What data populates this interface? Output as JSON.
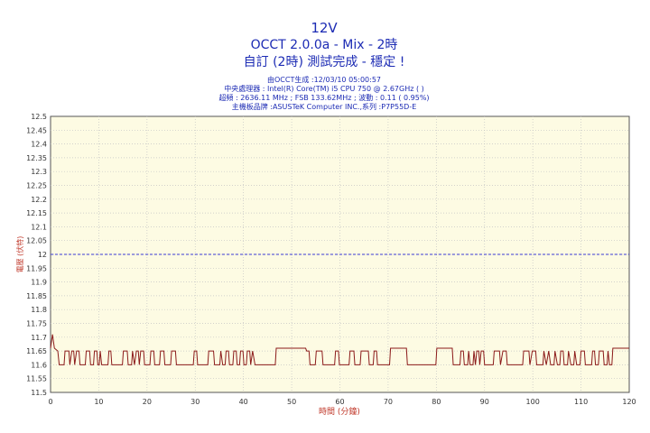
{
  "chart_data": {
    "type": "line",
    "title": "12V",
    "subtitle": "OCCT 2.0.0a - Mix - 2時",
    "status": "自訂 (2時) 測試完成 - 穩定 !",
    "info_lines": [
      "由OCCT生成 :12/03/10 05:00:57",
      "中央處理器 : Intel(R) Core(TM) i5 CPU 750 @ 2.67GHz (  )",
      "超頻 : 2636.11 MHz ; FSB 133.62MHz ; 波動 : 0.11 ( 0.95%)",
      "主機板品牌 :ASUSTeK Computer INC.,系列 :P7P55D-E"
    ],
    "xlabel": "時間 (分鐘)",
    "ylabel": "電壓 (伏特)",
    "xlim": [
      0,
      120
    ],
    "ylim": [
      11.5,
      12.5
    ],
    "x_ticks": [
      0,
      10,
      20,
      30,
      40,
      50,
      60,
      70,
      80,
      90,
      100,
      110,
      120
    ],
    "y_ticks": [
      "11.5",
      "11.55",
      "11.6",
      "11.65",
      "11.7",
      "11.75",
      "11.8",
      "11.85",
      "11.9",
      "11.95",
      "12",
      "12.05",
      "12.1",
      "12.15",
      "12.2",
      "12.25",
      "12.3",
      "12.35",
      "12.4",
      "12.45",
      "12.5"
    ],
    "grid": true,
    "reference_line": {
      "value": 12.0,
      "color": "#3b3bd6"
    },
    "series": [
      {
        "color": "#8b1a1a",
        "points": [
          [
            0,
            11.66
          ],
          [
            0.4,
            11.71
          ],
          [
            0.8,
            11.66
          ],
          [
            1.5,
            11.65
          ],
          [
            1.8,
            11.6
          ],
          [
            2.8,
            11.6
          ],
          [
            3.0,
            11.65
          ],
          [
            3.8,
            11.65
          ],
          [
            4.0,
            11.6
          ],
          [
            4.4,
            11.65
          ],
          [
            4.8,
            11.65
          ],
          [
            5.0,
            11.6
          ],
          [
            5.4,
            11.65
          ],
          [
            5.9,
            11.65
          ],
          [
            6.1,
            11.6
          ],
          [
            7.2,
            11.6
          ],
          [
            7.4,
            11.65
          ],
          [
            8.1,
            11.65
          ],
          [
            8.3,
            11.6
          ],
          [
            8.9,
            11.6
          ],
          [
            9.1,
            11.65
          ],
          [
            9.6,
            11.65
          ],
          [
            9.8,
            11.6
          ],
          [
            10.1,
            11.6
          ],
          [
            10.3,
            11.65
          ],
          [
            10.6,
            11.6
          ],
          [
            11.9,
            11.6
          ],
          [
            12.1,
            11.65
          ],
          [
            12.5,
            11.65
          ],
          [
            12.7,
            11.6
          ],
          [
            14.9,
            11.6
          ],
          [
            15.1,
            11.65
          ],
          [
            15.9,
            11.65
          ],
          [
            16.1,
            11.6
          ],
          [
            16.8,
            11.6
          ],
          [
            17.0,
            11.65
          ],
          [
            17.4,
            11.6
          ],
          [
            17.8,
            11.65
          ],
          [
            18.2,
            11.65
          ],
          [
            18.4,
            11.6
          ],
          [
            18.7,
            11.65
          ],
          [
            19.3,
            11.65
          ],
          [
            19.5,
            11.6
          ],
          [
            20.6,
            11.6
          ],
          [
            20.8,
            11.65
          ],
          [
            21.4,
            11.65
          ],
          [
            21.6,
            11.6
          ],
          [
            22.6,
            11.6
          ],
          [
            22.8,
            11.65
          ],
          [
            23.5,
            11.65
          ],
          [
            23.7,
            11.6
          ],
          [
            24.9,
            11.6
          ],
          [
            25.1,
            11.65
          ],
          [
            25.9,
            11.65
          ],
          [
            26.1,
            11.6
          ],
          [
            29.6,
            11.6
          ],
          [
            29.8,
            11.65
          ],
          [
            30.3,
            11.65
          ],
          [
            30.5,
            11.6
          ],
          [
            32.6,
            11.6
          ],
          [
            32.8,
            11.65
          ],
          [
            33.8,
            11.65
          ],
          [
            34.0,
            11.6
          ],
          [
            35.1,
            11.6
          ],
          [
            35.3,
            11.65
          ],
          [
            35.7,
            11.6
          ],
          [
            36.2,
            11.6
          ],
          [
            36.4,
            11.65
          ],
          [
            36.9,
            11.65
          ],
          [
            37.1,
            11.6
          ],
          [
            37.8,
            11.6
          ],
          [
            38.0,
            11.65
          ],
          [
            38.5,
            11.65
          ],
          [
            38.7,
            11.6
          ],
          [
            39.2,
            11.6
          ],
          [
            39.4,
            11.65
          ],
          [
            39.9,
            11.65
          ],
          [
            40.1,
            11.6
          ],
          [
            40.6,
            11.6
          ],
          [
            40.8,
            11.65
          ],
          [
            41.3,
            11.65
          ],
          [
            41.5,
            11.6
          ],
          [
            41.9,
            11.65
          ],
          [
            42.4,
            11.6
          ],
          [
            46.6,
            11.6
          ],
          [
            46.8,
            11.66
          ],
          [
            52.9,
            11.66
          ],
          [
            53.1,
            11.65
          ],
          [
            53.6,
            11.65
          ],
          [
            53.8,
            11.6
          ],
          [
            54.9,
            11.6
          ],
          [
            55.1,
            11.65
          ],
          [
            56.3,
            11.65
          ],
          [
            56.5,
            11.6
          ],
          [
            58.9,
            11.6
          ],
          [
            59.1,
            11.65
          ],
          [
            59.7,
            11.65
          ],
          [
            59.9,
            11.6
          ],
          [
            61.9,
            11.6
          ],
          [
            62.1,
            11.65
          ],
          [
            62.9,
            11.65
          ],
          [
            63.1,
            11.6
          ],
          [
            64.2,
            11.6
          ],
          [
            64.4,
            11.65
          ],
          [
            65.9,
            11.65
          ],
          [
            66.1,
            11.6
          ],
          [
            66.9,
            11.6
          ],
          [
            67.1,
            11.65
          ],
          [
            67.6,
            11.65
          ],
          [
            67.8,
            11.6
          ],
          [
            70.3,
            11.6
          ],
          [
            70.5,
            11.66
          ],
          [
            73.8,
            11.66
          ],
          [
            74.0,
            11.6
          ],
          [
            79.9,
            11.6
          ],
          [
            80.1,
            11.66
          ],
          [
            83.3,
            11.66
          ],
          [
            83.5,
            11.6
          ],
          [
            84.9,
            11.6
          ],
          [
            85.1,
            11.65
          ],
          [
            85.6,
            11.65
          ],
          [
            85.8,
            11.6
          ],
          [
            86.5,
            11.6
          ],
          [
            86.7,
            11.65
          ],
          [
            87.0,
            11.6
          ],
          [
            87.6,
            11.6
          ],
          [
            87.8,
            11.65
          ],
          [
            88.1,
            11.6
          ],
          [
            88.4,
            11.65
          ],
          [
            88.8,
            11.65
          ],
          [
            89.0,
            11.6
          ],
          [
            89.3,
            11.65
          ],
          [
            89.8,
            11.65
          ],
          [
            90.0,
            11.6
          ],
          [
            91.8,
            11.6
          ],
          [
            92.0,
            11.65
          ],
          [
            93.1,
            11.65
          ],
          [
            93.3,
            11.6
          ],
          [
            93.8,
            11.65
          ],
          [
            94.5,
            11.65
          ],
          [
            94.7,
            11.6
          ],
          [
            97.9,
            11.6
          ],
          [
            98.1,
            11.65
          ],
          [
            99.2,
            11.65
          ],
          [
            99.4,
            11.6
          ],
          [
            99.9,
            11.65
          ],
          [
            100.6,
            11.65
          ],
          [
            100.8,
            11.6
          ],
          [
            102.1,
            11.6
          ],
          [
            102.3,
            11.65
          ],
          [
            102.8,
            11.6
          ],
          [
            103.3,
            11.65
          ],
          [
            103.7,
            11.6
          ],
          [
            104.4,
            11.6
          ],
          [
            104.6,
            11.65
          ],
          [
            105.1,
            11.6
          ],
          [
            105.6,
            11.6
          ],
          [
            105.8,
            11.65
          ],
          [
            106.3,
            11.65
          ],
          [
            106.5,
            11.6
          ],
          [
            107.2,
            11.6
          ],
          [
            107.4,
            11.65
          ],
          [
            107.9,
            11.6
          ],
          [
            108.5,
            11.6
          ],
          [
            108.7,
            11.65
          ],
          [
            109.1,
            11.6
          ],
          [
            109.8,
            11.6
          ],
          [
            110.0,
            11.65
          ],
          [
            110.7,
            11.65
          ],
          [
            110.9,
            11.6
          ],
          [
            112.2,
            11.6
          ],
          [
            112.4,
            11.65
          ],
          [
            112.8,
            11.65
          ],
          [
            113.0,
            11.6
          ],
          [
            113.6,
            11.6
          ],
          [
            113.8,
            11.65
          ],
          [
            114.6,
            11.65
          ],
          [
            114.8,
            11.6
          ],
          [
            115.4,
            11.6
          ],
          [
            115.6,
            11.65
          ],
          [
            115.9,
            11.6
          ],
          [
            116.4,
            11.6
          ],
          [
            116.6,
            11.66
          ],
          [
            120,
            11.66
          ]
        ]
      }
    ]
  },
  "colors": {
    "plot_bg": "#fdfbe3",
    "grid": "#c4c4c4",
    "text_main": "#1c2bb4",
    "axis_title": "#c0392b"
  }
}
